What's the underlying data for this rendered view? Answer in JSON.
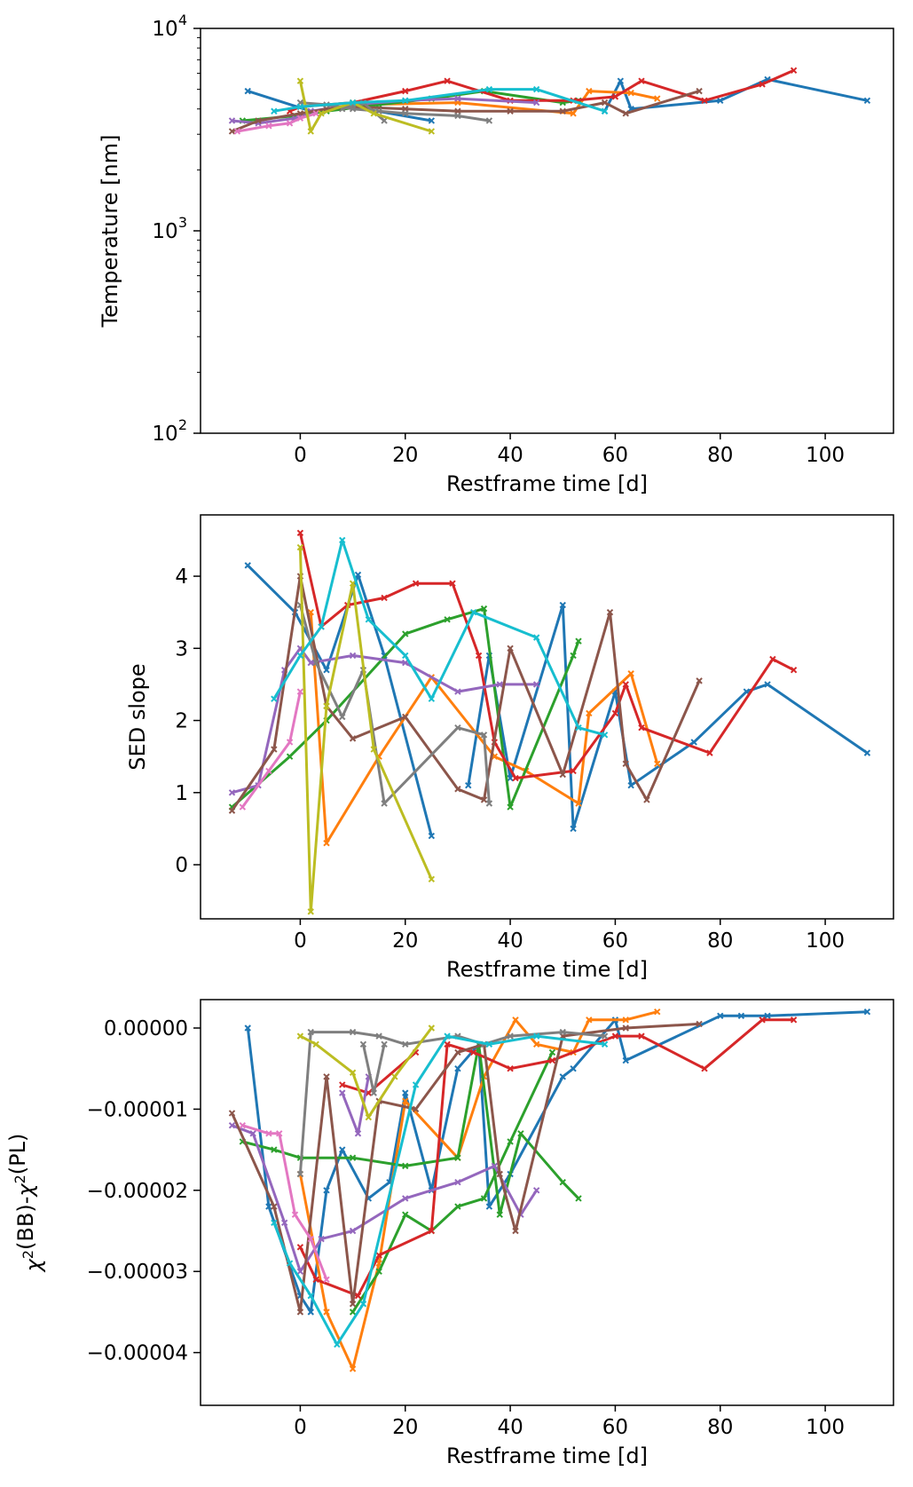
{
  "figure": {
    "description": "Three stacked line-plot panels sharing a restframe time axis"
  },
  "chart_data": [
    {
      "type": "line",
      "xlabel": "Restframe time [d]",
      "ylabel": "Temperature [nm]",
      "yscale": "log",
      "xlim": [
        -19,
        113
      ],
      "ylim": [
        100,
        10000
      ],
      "xticks": [
        0,
        20,
        40,
        60,
        80,
        100
      ],
      "yticks": [
        {
          "value": 100,
          "base": "10",
          "exp": "2"
        },
        {
          "value": 1000,
          "base": "10",
          "exp": "3"
        },
        {
          "value": 10000,
          "base": "10",
          "exp": "4"
        }
      ],
      "grid": false,
      "series": [
        {
          "color": "#1f77b4",
          "x": [
            -10,
            2,
            10,
            25
          ],
          "y": [
            4900,
            3900,
            4100,
            3500
          ]
        },
        {
          "color": "#1f77b4",
          "x": [
            58,
            61,
            63,
            80,
            89,
            108
          ],
          "y": [
            3900,
            5500,
            4000,
            4400,
            5600,
            4400
          ]
        },
        {
          "color": "#ff7f0e",
          "x": [
            5,
            12,
            30,
            52,
            55,
            63,
            68
          ],
          "y": [
            4000,
            4200,
            4300,
            3800,
            4900,
            4800,
            4500
          ]
        },
        {
          "color": "#2ca02c",
          "x": [
            -11,
            -1,
            5,
            15,
            25,
            35,
            50,
            53
          ],
          "y": [
            3500,
            3700,
            3900,
            4200,
            4500,
            4900,
            4300,
            4400
          ]
        },
        {
          "color": "#d62728",
          "x": [
            -2,
            0,
            10,
            20,
            28,
            40,
            52,
            60,
            65,
            77,
            88,
            94
          ],
          "y": [
            3900,
            4100,
            4300,
            4900,
            5500,
            4400,
            4400,
            4600,
            5500,
            4400,
            5300,
            6200
          ]
        },
        {
          "color": "#9467bd",
          "x": [
            -13,
            -8,
            -1,
            2,
            10,
            20,
            30,
            45
          ],
          "y": [
            3500,
            3400,
            3600,
            3900,
            4200,
            4400,
            4500,
            4300
          ]
        },
        {
          "color": "#8c564b",
          "x": [
            -13,
            -8,
            0,
            5,
            10,
            20,
            30,
            40,
            50,
            58,
            62,
            76
          ],
          "y": [
            3100,
            3500,
            3800,
            4000,
            4100,
            4000,
            3900,
            3900,
            3900,
            4300,
            3800,
            4900
          ]
        },
        {
          "color": "#e377c2",
          "x": [
            -12,
            -6,
            -2,
            0,
            3
          ],
          "y": [
            3100,
            3300,
            3400,
            3600,
            3800
          ]
        },
        {
          "color": "#7f7f7f",
          "x": [
            0,
            5,
            10,
            15,
            20,
            30,
            36
          ],
          "y": [
            4300,
            4200,
            4000,
            3900,
            3800,
            3700,
            3500
          ]
        },
        {
          "color": "#7f7f7f",
          "x": [
            8,
            12,
            16
          ],
          "y": [
            4000,
            4300,
            3500
          ]
        },
        {
          "color": "#bcbd22",
          "x": [
            0,
            2,
            4,
            10,
            14,
            25
          ],
          "y": [
            5500,
            3100,
            3800,
            4300,
            3800,
            3100
          ]
        },
        {
          "color": "#17becf",
          "x": [
            -5,
            0,
            10,
            20,
            36,
            45,
            58
          ],
          "y": [
            3900,
            4100,
            4300,
            4400,
            5000,
            5000,
            3900
          ]
        }
      ]
    },
    {
      "type": "line",
      "xlabel": "Restframe time [d]",
      "ylabel": "SED slope",
      "yscale": "linear",
      "xlim": [
        -19,
        113
      ],
      "ylim": [
        -0.75,
        4.85
      ],
      "xticks": [
        0,
        20,
        40,
        60,
        80,
        100
      ],
      "yticks": [
        0,
        1,
        2,
        3,
        4
      ],
      "grid": false,
      "series": [
        {
          "color": "#1f77b4",
          "x": [
            -10,
            -1,
            5,
            11,
            16,
            25
          ],
          "y": [
            4.15,
            3.5,
            2.7,
            4.02,
            2.9,
            0.4
          ]
        },
        {
          "color": "#1f77b4",
          "x": [
            32,
            36,
            40,
            50,
            52,
            60,
            63,
            75,
            85,
            89,
            108
          ],
          "y": [
            1.1,
            2.9,
            1.2,
            3.6,
            0.5,
            2.4,
            1.1,
            1.7,
            2.4,
            2.5,
            1.55
          ]
        },
        {
          "color": "#ff7f0e",
          "x": [
            2,
            5,
            15,
            25,
            37,
            43,
            53,
            55,
            63,
            68
          ],
          "y": [
            3.5,
            0.3,
            1.5,
            2.6,
            1.5,
            1.3,
            0.85,
            2.1,
            2.65,
            1.4
          ]
        },
        {
          "color": "#2ca02c",
          "x": [
            -13,
            -2,
            5,
            20,
            28,
            35,
            40,
            52,
            53
          ],
          "y": [
            0.8,
            1.5,
            2.0,
            3.2,
            3.4,
            3.55,
            0.8,
            2.9,
            3.1
          ]
        },
        {
          "color": "#d62728",
          "x": [
            0,
            4,
            9,
            16,
            22,
            29,
            34,
            37,
            41,
            52,
            60,
            62,
            65,
            78,
            90,
            94
          ],
          "y": [
            4.6,
            3.3,
            3.6,
            3.7,
            3.9,
            3.9,
            2.9,
            1.7,
            1.2,
            1.3,
            2.1,
            2.5,
            1.9,
            1.55,
            2.85,
            2.7
          ]
        },
        {
          "color": "#9467bd",
          "x": [
            -13,
            -8,
            -3,
            0,
            2,
            10,
            20,
            30,
            38,
            45
          ],
          "y": [
            1.0,
            1.1,
            2.7,
            3.0,
            2.8,
            2.9,
            2.8,
            2.4,
            2.5,
            2.5
          ]
        },
        {
          "color": "#8c564b",
          "x": [
            -13,
            -5,
            0,
            5,
            10,
            20,
            30,
            35,
            40,
            50,
            59,
            62,
            66,
            76
          ],
          "y": [
            0.75,
            1.6,
            4.0,
            2.2,
            1.75,
            2.05,
            1.05,
            0.9,
            3.0,
            1.25,
            3.5,
            1.4,
            0.9,
            2.55
          ]
        },
        {
          "color": "#e377c2",
          "x": [
            -11,
            -6,
            -2,
            0
          ],
          "y": [
            0.8,
            1.3,
            1.7,
            2.4
          ]
        },
        {
          "color": "#7f7f7f",
          "x": [
            0,
            3,
            8,
            12,
            16,
            30,
            35,
            36
          ],
          "y": [
            3.6,
            2.8,
            2.05,
            2.7,
            0.85,
            1.9,
            1.8,
            0.85
          ]
        },
        {
          "color": "#bcbd22",
          "x": [
            0,
            2,
            5,
            10,
            14,
            25
          ],
          "y": [
            4.4,
            -0.65,
            2.2,
            3.9,
            1.6,
            -0.2
          ]
        },
        {
          "color": "#17becf",
          "x": [
            -5,
            0,
            4,
            8,
            13,
            20,
            25,
            33,
            45,
            53,
            58
          ],
          "y": [
            2.3,
            2.9,
            3.3,
            4.5,
            3.4,
            2.9,
            2.3,
            3.5,
            3.15,
            1.9,
            1.8
          ]
        }
      ]
    },
    {
      "type": "line",
      "xlabel": "Restframe time [d]",
      "ylabel": "χ²(BB)-χ²(PL)",
      "yscale": "linear",
      "xlim": [
        -19,
        113
      ],
      "ylim": [
        -4.65e-05,
        3.5e-06
      ],
      "xticks": [
        0,
        20,
        40,
        60,
        80,
        100
      ],
      "yticks": [
        {
          "value": 0,
          "label": "0.00000"
        },
        {
          "value": -1e-05,
          "label": "−0.00001"
        },
        {
          "value": -2e-05,
          "label": "−0.00002"
        },
        {
          "value": -3e-05,
          "label": "−0.00003"
        },
        {
          "value": -4e-05,
          "label": "−0.00004"
        }
      ],
      "grid": false,
      "series": [
        {
          "color": "#1f77b4",
          "x": [
            -10,
            -6,
            0,
            2,
            5,
            8,
            13,
            17,
            20,
            25,
            30,
            34,
            36,
            40,
            50,
            52,
            60,
            62,
            80,
            84,
            89,
            108
          ],
          "y": [
            0.0,
            -2.2e-05,
            -3.3e-05,
            -3.5e-05,
            -2e-05,
            -1.5e-05,
            -2.1e-05,
            -1.9e-05,
            -8e-06,
            -2e-05,
            -5e-06,
            -2e-06,
            -2.2e-05,
            -1.8e-05,
            -6e-06,
            -5e-06,
            1e-06,
            -4e-06,
            1.5e-06,
            1.5e-06,
            1.5e-06,
            2e-06
          ]
        },
        {
          "color": "#ff7f0e",
          "x": [
            0,
            5,
            10,
            15,
            20,
            30,
            35,
            41,
            45,
            52,
            55,
            62,
            68
          ],
          "y": [
            -1.8e-05,
            -3.5e-05,
            -4.2e-05,
            -2.9e-05,
            -9e-06,
            -1.6e-05,
            -6e-06,
            1e-06,
            -2e-06,
            -3e-06,
            1e-06,
            1e-06,
            2e-06
          ]
        },
        {
          "color": "#2ca02c",
          "x": [
            -11,
            -5,
            0,
            10,
            20,
            30,
            34,
            38,
            42,
            50,
            53
          ],
          "y": [
            -1.4e-05,
            -1.5e-05,
            -1.6e-05,
            -1.6e-05,
            -1.7e-05,
            -1.6e-05,
            -2e-06,
            -2.3e-05,
            -1.3e-05,
            -1.9e-05,
            -2.1e-05
          ]
        },
        {
          "color": "#2ca02c",
          "x": [
            10,
            15,
            20,
            25,
            30,
            35,
            40,
            48
          ],
          "y": [
            -3.5e-05,
            -3e-05,
            -2.3e-05,
            -2.5e-05,
            -2.2e-05,
            -2.1e-05,
            -1.4e-05,
            -3e-06
          ]
        },
        {
          "color": "#d62728",
          "x": [
            0,
            3,
            11,
            15,
            25,
            28,
            33,
            40,
            48,
            60,
            65,
            77,
            88,
            94
          ],
          "y": [
            -2.7e-05,
            -3.1e-05,
            -3.3e-05,
            -2.8e-05,
            -2.5e-05,
            -2e-06,
            -3e-06,
            -5e-06,
            -4e-06,
            -1e-06,
            -1e-06,
            -5e-06,
            1e-06,
            1e-06
          ]
        },
        {
          "color": "#d62728",
          "x": [
            8,
            13,
            22
          ],
          "y": [
            -7e-06,
            -8e-06,
            -3e-06
          ]
        },
        {
          "color": "#9467bd",
          "x": [
            -13,
            -9,
            -3,
            0,
            4,
            10,
            20,
            30,
            37,
            42,
            45
          ],
          "y": [
            -1.2e-05,
            -1.3e-05,
            -2.4e-05,
            -3e-05,
            -2.6e-05,
            -2.5e-05,
            -2.1e-05,
            -1.9e-05,
            -1.7e-05,
            -2.3e-05,
            -2e-05
          ]
        },
        {
          "color": "#9467bd",
          "x": [
            8,
            11,
            13
          ],
          "y": [
            -8e-06,
            -1.3e-05,
            -6e-06
          ]
        },
        {
          "color": "#8c564b",
          "x": [
            -13,
            -5,
            0,
            5,
            10,
            15,
            22,
            30,
            35,
            38,
            41,
            50,
            62,
            76
          ],
          "y": [
            -1.05e-05,
            -2.2e-05,
            -3.5e-05,
            -6e-06,
            -3.4e-05,
            -9e-06,
            -1e-05,
            -3e-06,
            -2e-06,
            -1.8e-05,
            -2.5e-05,
            -1e-06,
            0.0,
            5e-07
          ]
        },
        {
          "color": "#e377c2",
          "x": [
            -11,
            -6,
            -4,
            -1,
            2,
            5
          ],
          "y": [
            -1.2e-05,
            -1.3e-05,
            -1.3e-05,
            -2.3e-05,
            -2.6e-05,
            -3.1e-05
          ]
        },
        {
          "color": "#7f7f7f",
          "x": [
            0,
            2,
            10,
            15,
            20,
            30,
            35,
            40,
            50,
            58
          ],
          "y": [
            -1.8e-05,
            -5e-07,
            -5e-07,
            -1e-06,
            -2e-06,
            -1e-06,
            -2e-06,
            -1e-06,
            -5e-07,
            -1e-06
          ]
        },
        {
          "color": "#7f7f7f",
          "x": [
            12,
            14,
            16
          ],
          "y": [
            -2e-06,
            -8e-06,
            -2e-06
          ]
        },
        {
          "color": "#bcbd22",
          "x": [
            0,
            3,
            10,
            13,
            18,
            25
          ],
          "y": [
            -1e-06,
            -2e-06,
            -5.5e-06,
            -1.1e-05,
            -6e-06,
            0.0
          ]
        },
        {
          "color": "#17becf",
          "x": [
            -5,
            -2,
            2,
            7,
            12,
            22,
            28,
            36,
            45,
            58
          ],
          "y": [
            -2.4e-05,
            -2.9e-05,
            -3.3e-05,
            -3.9e-05,
            -3.4e-05,
            -7e-06,
            -1e-06,
            -2e-06,
            -1e-06,
            -2e-06
          ]
        }
      ]
    }
  ]
}
